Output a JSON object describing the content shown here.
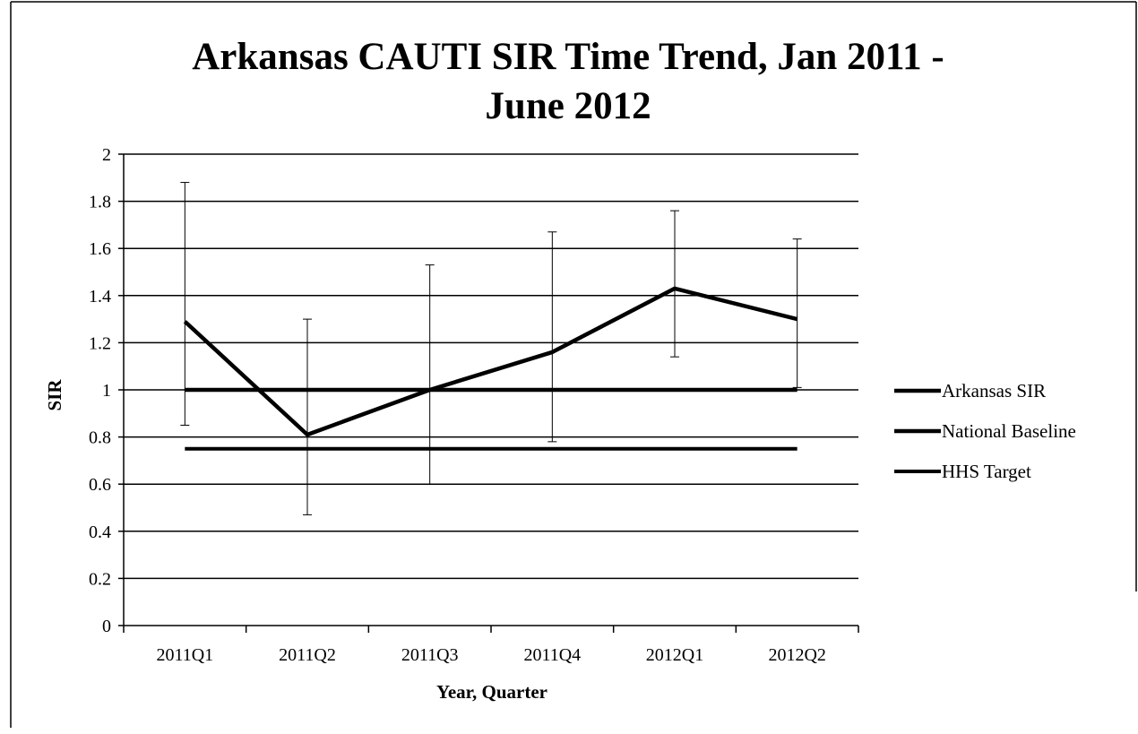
{
  "chart_data": {
    "type": "line",
    "title_line1": "Arkansas CAUTI SIR Time Trend, Jan 2011 -",
    "title_line2": "June 2012",
    "xlabel": "Year, Quarter",
    "ylabel": "SIR",
    "categories": [
      "2011Q1",
      "2011Q2",
      "2011Q3",
      "2011Q4",
      "2012Q1",
      "2012Q2"
    ],
    "ylim": [
      0,
      2
    ],
    "yticks": [
      "0",
      "0.2",
      "0.4",
      "0.6",
      "0.8",
      "1",
      "1.2",
      "1.4",
      "1.6",
      "1.8",
      "2"
    ],
    "grid": true,
    "legend_position": "right",
    "series": [
      {
        "name": "Arkansas SIR",
        "values": [
          1.29,
          0.81,
          1.0,
          1.16,
          1.43,
          1.3
        ],
        "error_low": [
          0.85,
          0.47,
          0.6,
          0.78,
          1.14,
          1.01
        ],
        "error_high": [
          1.88,
          1.3,
          1.53,
          1.67,
          1.76,
          1.64
        ],
        "color": "#000000"
      },
      {
        "name": "National Baseline",
        "values": [
          1,
          1,
          1,
          1,
          1,
          1
        ],
        "color": "#000000"
      },
      {
        "name": "HHS Target",
        "values": [
          0.75,
          0.75,
          0.75,
          0.75,
          0.75,
          0.75
        ],
        "color": "#000000"
      }
    ]
  }
}
